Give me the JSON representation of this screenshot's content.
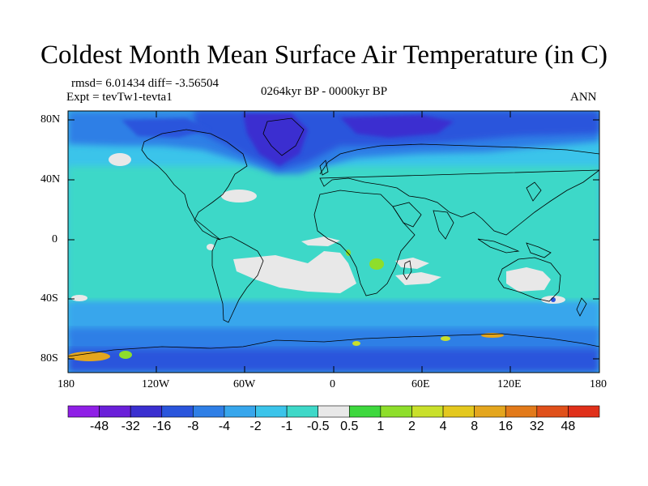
{
  "title": "Coldest Month Mean Surface Air Temperature (in C)",
  "stats": {
    "rmsd_diff": "rmsd= 6.01434 diff= -3.56504",
    "experiment": "Expt = tevTw1-tevta1",
    "period": "0264kyr BP - 0000kyr BP",
    "season": "ANN"
  },
  "axes": {
    "lat_labels": [
      "80N",
      "40N",
      "0",
      "40S",
      "80S"
    ],
    "lon_labels": [
      "180",
      "120W",
      "60W",
      "0",
      "60E",
      "120E",
      "180"
    ]
  },
  "colorbar": {
    "labels": [
      "-48",
      "-32",
      "-16",
      "-8",
      "-4",
      "-2",
      "-1",
      "-0.5",
      "0.5",
      "1",
      "2",
      "4",
      "8",
      "16",
      "32",
      "48"
    ],
    "colors": [
      "#8f1fe6",
      "#6a1fd9",
      "#3a2fd0",
      "#2a55dc",
      "#2f7fe6",
      "#37a6ec",
      "#3bc4ea",
      "#3ed8c8",
      "#e8e8e8",
      "#3ed83e",
      "#8ede2b",
      "#c9e02b",
      "#e4c81e",
      "#e4a61e",
      "#e27a1a",
      "#e0501a",
      "#e0301a"
    ]
  }
}
